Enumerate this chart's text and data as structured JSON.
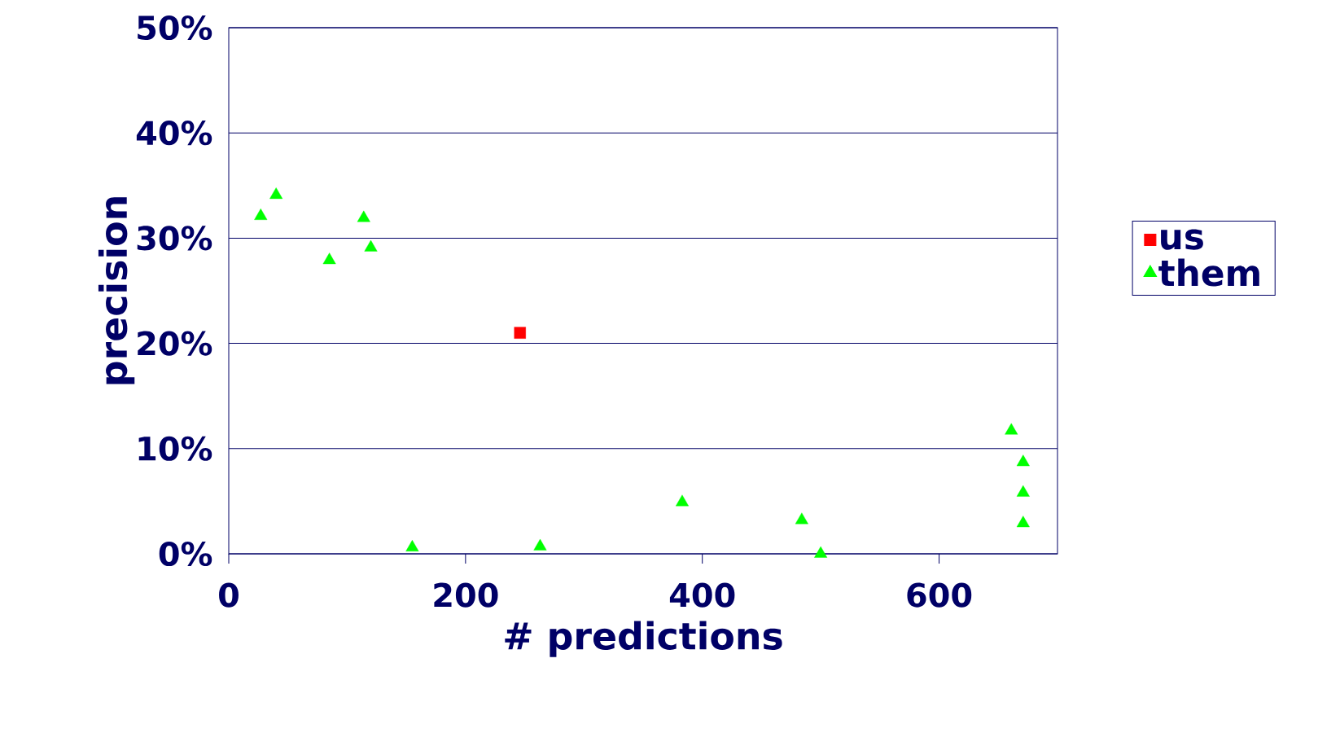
{
  "chart_data": {
    "type": "scatter",
    "xlabel": "# predictions",
    "ylabel": "precision",
    "xlim": [
      0,
      700
    ],
    "xticks": [
      0,
      200,
      400,
      600
    ],
    "ylim": [
      0,
      50
    ],
    "yticks": [
      {
        "value": 0,
        "label": "0%"
      },
      {
        "value": 10,
        "label": "10%"
      },
      {
        "value": 20,
        "label": "20%"
      },
      {
        "value": 30,
        "label": "30%"
      },
      {
        "value": 40,
        "label": "40%"
      },
      {
        "value": 50,
        "label": "50%"
      }
    ],
    "grid": "y",
    "legend": "right",
    "series": [
      {
        "name": "us",
        "color": "#ff0000",
        "marker": "square",
        "x": [
          246
        ],
        "values": [
          21.0
        ]
      },
      {
        "name": "them",
        "color": "#00ff00",
        "marker": "triangle",
        "x": [
          27,
          40,
          85,
          114,
          120,
          155,
          263,
          383,
          484,
          500,
          661,
          671,
          671,
          671
        ],
        "values": [
          32.1,
          34.1,
          27.9,
          31.9,
          29.1,
          0.6,
          0.7,
          4.9,
          3.2,
          0.0,
          11.7,
          8.7,
          5.8,
          2.9
        ]
      }
    ]
  }
}
